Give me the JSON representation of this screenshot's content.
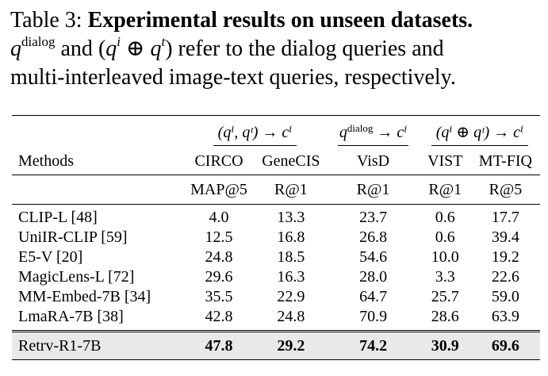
{
  "caption": {
    "label": "Table 3:",
    "title": "Experimental results on unseen datasets.",
    "q": "q",
    "dialog_sup": "dialog",
    "text_and": "and",
    "qi": "q",
    "i_sup": "i",
    "oplus": "⊕",
    "qt": "q",
    "t_sup": "t",
    "text_rest": "refer to the dialog queries and",
    "line3": "multi-interleaved image-text queries, respectively."
  },
  "table": {
    "group_headers": [
      {
        "label": "(qⁱ, qᵗ) → cⁱ"
      },
      {
        "label": "q",
        "sup": "dialog",
        "tail": " → cⁱ"
      },
      {
        "label": "(qⁱ ⊕ qᵗ) → cⁱ"
      }
    ],
    "methods_header": "Methods",
    "datasets": [
      "CIRCO",
      "GeneCIS",
      "VisD",
      "VIST",
      "MT-FIQ"
    ],
    "metrics": [
      "MAP@5",
      "R@1",
      "R@1",
      "R@1",
      "R@5"
    ],
    "rows": [
      {
        "method": "CLIP-L [48]",
        "values": [
          "4.0",
          "13.3",
          "23.7",
          "0.6",
          "17.7"
        ]
      },
      {
        "method": "UniIR-CLIP [59]",
        "values": [
          "12.5",
          "16.8",
          "26.8",
          "0.6",
          "39.4"
        ]
      },
      {
        "method": "E5-V [20]",
        "values": [
          "24.8",
          "18.5",
          "54.6",
          "10.0",
          "19.2"
        ]
      },
      {
        "method": "MagicLens-L [72]",
        "values": [
          "29.6",
          "16.3",
          "28.0",
          "3.3",
          "22.6"
        ]
      },
      {
        "method": "MM-Embed-7B [34]",
        "values": [
          "35.5",
          "22.9",
          "64.7",
          "25.7",
          "59.0"
        ]
      },
      {
        "method": "LmaRA-7B [38]",
        "values": [
          "42.8",
          "24.8",
          "70.9",
          "28.6",
          "63.9"
        ]
      }
    ],
    "ours": {
      "method": "Retrv-R1-7B",
      "values": [
        "47.8",
        "29.2",
        "74.2",
        "30.9",
        "69.6"
      ]
    }
  }
}
